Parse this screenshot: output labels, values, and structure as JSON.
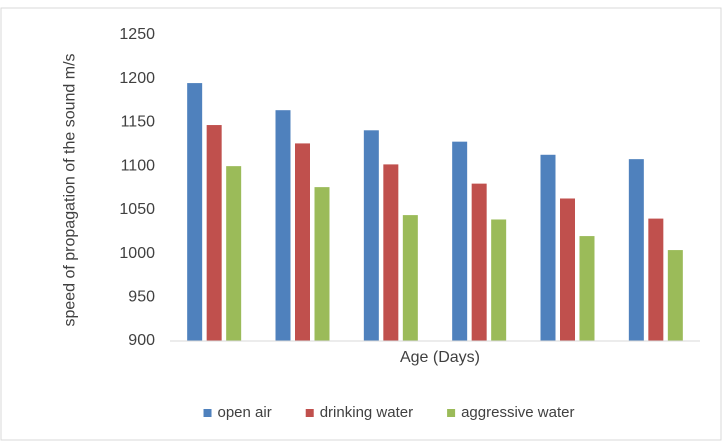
{
  "chart_data": {
    "type": "bar",
    "y_label": "speed of propagation of the sound m/s",
    "x_label": "Age (Days)",
    "categories": [
      null,
      null,
      null,
      null,
      null,
      null
    ],
    "series": [
      {
        "name": "open air",
        "color": "#4f81bd",
        "values": [
          1195,
          1164,
          1141,
          1128,
          1113,
          1108
        ]
      },
      {
        "name": "drinking water",
        "color": "#c0504d",
        "values": [
          1147,
          1126,
          1102,
          1080,
          1063,
          1040
        ]
      },
      {
        "name": "aggressive water",
        "color": "#9bbb59",
        "values": [
          1100,
          1076,
          1044,
          1039,
          1020,
          1004
        ]
      }
    ],
    "ylim": [
      900,
      1250
    ],
    "yticks": [
      900,
      950,
      1000,
      1050,
      1100,
      1150,
      1200,
      1250
    ],
    "grid": false,
    "legend": "bottom"
  }
}
